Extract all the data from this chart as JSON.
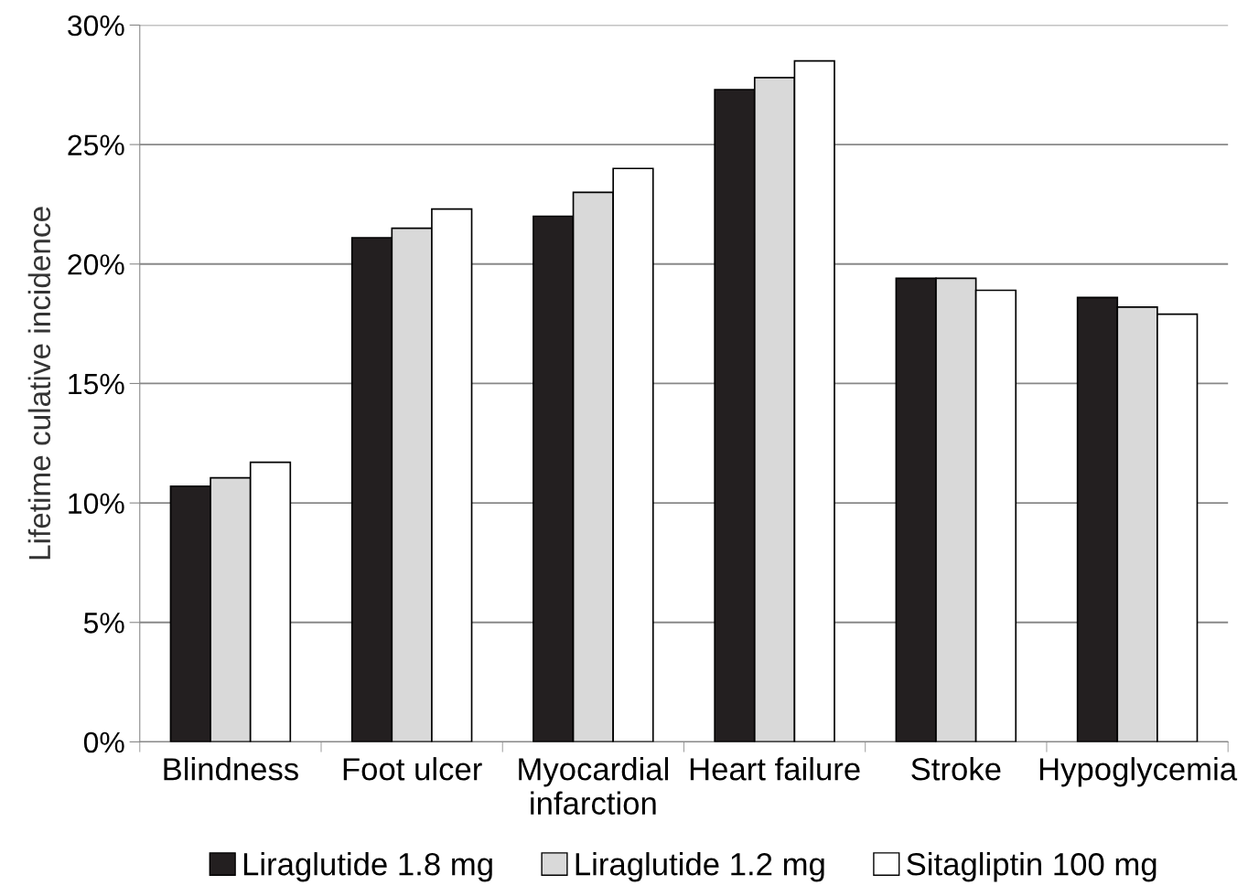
{
  "chart_data": {
    "type": "bar",
    "ylabel": "Lifetime culative incidence",
    "categories": [
      "Blindness",
      "Foot ulcer",
      "Myocardial\ninfarction",
      "Heart failure",
      "Stroke",
      "Hypoglycemia"
    ],
    "series": [
      {
        "name": "Liraglutide 1.8 mg",
        "color": "#231f20",
        "values": [
          10.7,
          21.1,
          22.0,
          27.3,
          19.4,
          18.6
        ]
      },
      {
        "name": "Liraglutide 1.2 mg",
        "color": "#d9d9d9",
        "values": [
          11.05,
          21.5,
          23.0,
          27.8,
          19.4,
          18.2
        ]
      },
      {
        "name": "Sitagliptin 100 mg",
        "color": "#ffffff",
        "values": [
          11.7,
          22.3,
          24.0,
          28.5,
          18.9,
          17.9
        ]
      }
    ],
    "ylim": [
      0,
      30
    ],
    "yticks": [
      {
        "value": 0,
        "label": "0%"
      },
      {
        "value": 5,
        "label": "5%"
      },
      {
        "value": 10,
        "label": "10%"
      },
      {
        "value": 15,
        "label": "15%"
      },
      {
        "value": 20,
        "label": "20%"
      },
      {
        "value": 25,
        "label": "25%"
      },
      {
        "value": 30,
        "label": "30%"
      }
    ],
    "grid": "y",
    "legend": "bottom"
  }
}
